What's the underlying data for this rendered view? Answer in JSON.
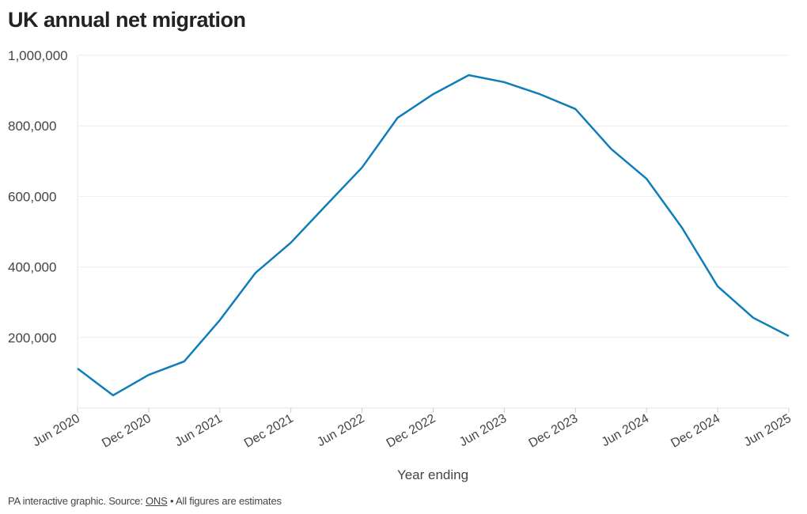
{
  "title": "UK annual net migration",
  "footer": {
    "prefix": "PA interactive graphic. Source: ",
    "source_link": "ONS",
    "suffix": " • All figures are estimates"
  },
  "chart_data": {
    "type": "line",
    "title": "UK annual net migration",
    "xlabel": "Year ending",
    "ylabel": "",
    "ylim": [
      0,
      1000000
    ],
    "grid": true,
    "line_color": "#0e7db8",
    "y_ticks": [
      200000,
      400000,
      600000,
      800000,
      1000000
    ],
    "y_tick_labels": [
      "200,000",
      "400,000",
      "600,000",
      "800,000",
      "1,000,000"
    ],
    "x_tick_labels": [
      "Jun 2020",
      "Dec 2020",
      "Jun 2021",
      "Dec 2021",
      "Jun 2022",
      "Dec 2022",
      "Jun 2023",
      "Dec 2023",
      "Jun 2024",
      "Dec 2024",
      "Jun 2025"
    ],
    "x": [
      "Jun 2020",
      "Sep 2020",
      "Dec 2020",
      "Mar 2021",
      "Jun 2021",
      "Sep 2021",
      "Dec 2021",
      "Mar 2022",
      "Jun 2022",
      "Sep 2022",
      "Dec 2022",
      "Mar 2023",
      "Jun 2023",
      "Sep 2023",
      "Dec 2023",
      "Mar 2024",
      "Jun 2024",
      "Sep 2024",
      "Dec 2024",
      "Mar 2025",
      "Jun 2025"
    ],
    "series": [
      {
        "values": [
          112000,
          36000,
          94000,
          132000,
          249000,
          383000,
          469000,
          576000,
          682000,
          823000,
          890000,
          944000,
          924000,
          890000,
          848000,
          735000,
          650000,
          511000,
          345000,
          256000,
          204000
        ]
      }
    ]
  }
}
